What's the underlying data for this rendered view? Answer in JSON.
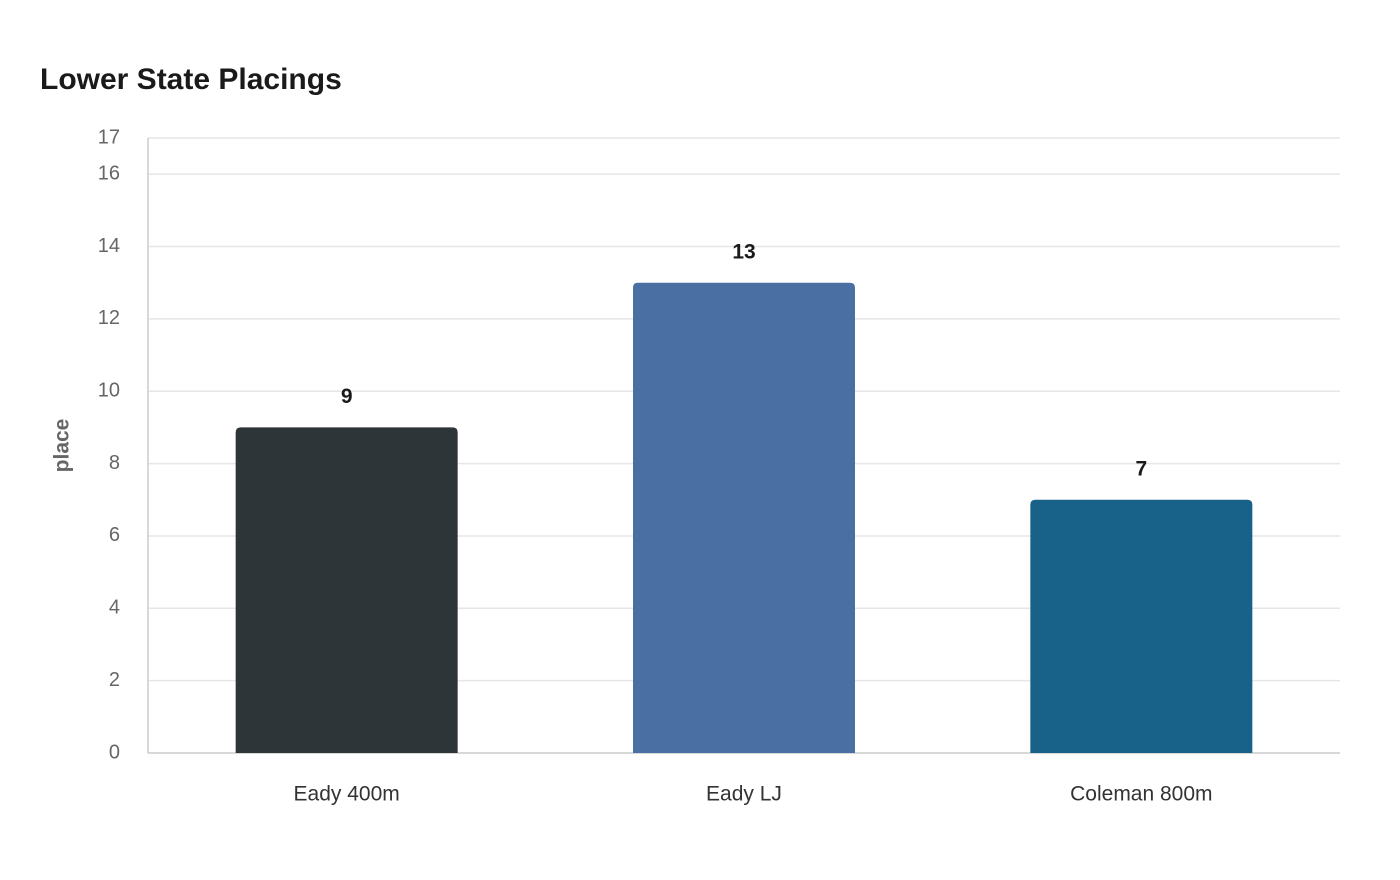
{
  "chart_data": {
    "type": "bar",
    "title": "Lower State Placings",
    "xlabel": "",
    "ylabel": "place",
    "categories": [
      "Eady 400m",
      "Eady LJ",
      "Coleman 800m"
    ],
    "values": [
      9,
      13,
      7
    ],
    "colors": [
      "#2e3538",
      "#4a6fa3",
      "#186189"
    ],
    "ylim": [
      0,
      17
    ],
    "yticks": [
      0,
      2,
      4,
      6,
      8,
      10,
      12,
      14,
      16,
      17
    ],
    "grid": true,
    "legend": "none",
    "data_labels": true
  }
}
